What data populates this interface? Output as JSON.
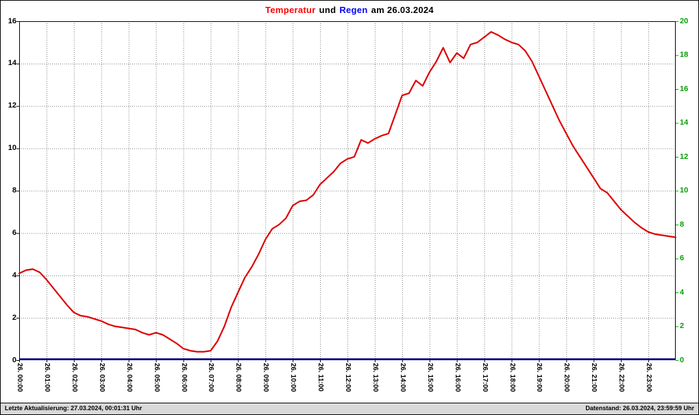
{
  "title": {
    "temperature_word": "Temperatur",
    "connector": "und",
    "rain_word": "Regen",
    "date_part": "am 26.03.2024"
  },
  "footer": {
    "last_update": "Letzte Aktualisierung: 27.03.2024, 00:01:31 Uhr",
    "data_state": "Datenstand: 26.03.2024, 23:59:59 Uhr"
  },
  "colors": {
    "temperature_line": "#dd0000",
    "rain_line": "#000080",
    "right_axis_text": "#00a000",
    "title_temperature": "#ff0000",
    "title_rain": "#0000ff",
    "grid": "#777777",
    "footer_bg": "#d9d9d9"
  },
  "chart_data": {
    "type": "line",
    "title": "Temperatur und Regen am 26.03.2024",
    "grid": {
      "style": "dotted",
      "horizontal_every_left_units": 2,
      "vertical_every_hours": 1
    },
    "x_axis": {
      "hours": 24,
      "tick_labels": [
        "26. 00:00",
        "26. 01:00",
        "26. 02:00",
        "26. 03:00",
        "26. 04:00",
        "26. 05:00",
        "26. 06:00",
        "26. 07:00",
        "26. 08:00",
        "26. 09:00",
        "26. 10:00",
        "26. 11:00",
        "26. 12:00",
        "26. 13:00",
        "26. 14:00",
        "26. 15:00",
        "26. 16:00",
        "26. 17:00",
        "26. 18:00",
        "26. 19:00",
        "26. 20:00",
        "26. 21:00",
        "26. 22:00",
        "26. 23:00"
      ]
    },
    "left_axis": {
      "series": "Temperatur",
      "min": 0,
      "max": 16,
      "step": 2,
      "tick_labels": [
        "16",
        "14",
        "12",
        "10",
        "8",
        "6",
        "4",
        "2",
        "0"
      ]
    },
    "right_axis": {
      "series": "Regen",
      "min": 0,
      "max": 20,
      "step": 2,
      "tick_labels": [
        "20",
        "18",
        "16",
        "14",
        "12",
        "10",
        "8",
        "6",
        "4",
        "2",
        "0"
      ]
    },
    "series": [
      {
        "name": "Temperatur",
        "axis": "left",
        "color": "#dd0000",
        "x_start_hour": 0,
        "x_step_hours": 0.25,
        "values": [
          4.1,
          4.25,
          4.3,
          4.15,
          3.8,
          3.4,
          3.0,
          2.6,
          2.25,
          2.1,
          2.05,
          1.95,
          1.85,
          1.7,
          1.6,
          1.55,
          1.5,
          1.45,
          1.3,
          1.2,
          1.3,
          1.2,
          1.0,
          0.8,
          0.55,
          0.45,
          0.4,
          0.4,
          0.45,
          0.9,
          1.6,
          2.5,
          3.2,
          3.9,
          4.4,
          5.0,
          5.7,
          6.2,
          6.4,
          6.7,
          7.3,
          7.5,
          7.55,
          7.8,
          8.3,
          8.6,
          8.9,
          9.3,
          9.5,
          9.6,
          10.4,
          10.25,
          10.45,
          10.6,
          10.7,
          11.6,
          12.5,
          12.6,
          13.2,
          12.95,
          13.6,
          14.1,
          14.75,
          14.05,
          14.5,
          14.25,
          14.9,
          15.0,
          15.25,
          15.5,
          15.35,
          15.15,
          15.0,
          14.9,
          14.6,
          14.1,
          13.4,
          12.7,
          12.0,
          11.3,
          10.7,
          10.1,
          9.6,
          9.1,
          8.6,
          8.1,
          7.9,
          7.5,
          7.1,
          6.8,
          6.5,
          6.25,
          6.05,
          5.95,
          5.9,
          5.85,
          5.8
        ]
      },
      {
        "name": "Regen",
        "axis": "right",
        "color": "#000080",
        "constant_value": 0
      }
    ]
  }
}
